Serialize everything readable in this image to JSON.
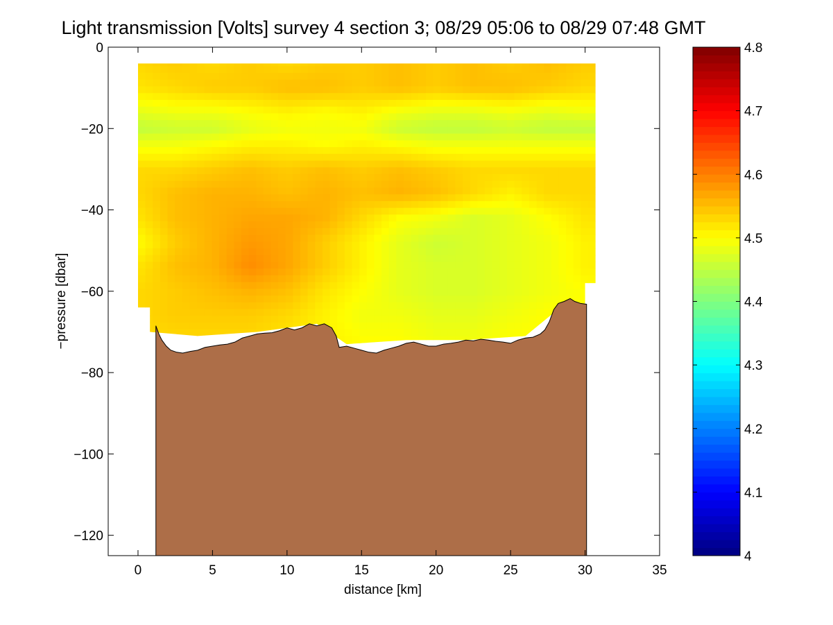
{
  "chart_data": {
    "type": "heatmap",
    "title": "Light transmission [Volts] survey 4 section 3; 08/29 05:06 to 08/29 07:48 GMT",
    "xlabel": "distance [km]",
    "ylabel": "−pressure [dbar]",
    "xlim": [
      -2,
      35
    ],
    "ylim": [
      -125,
      0
    ],
    "xticks": [
      0,
      5,
      10,
      15,
      20,
      25,
      30,
      35
    ],
    "yticks": [
      0,
      -20,
      -40,
      -60,
      -80,
      -100,
      -120
    ],
    "xtick_labels": [
      "0",
      "5",
      "10",
      "15",
      "20",
      "25",
      "30",
      "35"
    ],
    "ytick_labels": [
      "0",
      "−20",
      "−40",
      "−60",
      "−80",
      "−100",
      "−120"
    ],
    "colorbar": {
      "range": [
        4.0,
        4.8
      ],
      "ticks": [
        4.0,
        4.1,
        4.2,
        4.3,
        4.4,
        4.5,
        4.6,
        4.7,
        4.8
      ],
      "tick_labels": [
        "4",
        "4.1",
        "4.2",
        "4.3",
        "4.4",
        "4.5",
        "4.6",
        "4.7",
        "4.8"
      ],
      "colormap": "jet"
    },
    "data_extent": {
      "x_range_km": [
        0,
        30.7
      ],
      "top_pressure_dbar": -4,
      "bottom_edge": [
        [
          0,
          -64
        ],
        [
          0.8,
          -64
        ],
        [
          0.8,
          -70
        ],
        [
          4,
          -71
        ],
        [
          8,
          -70
        ],
        [
          12,
          -68
        ],
        [
          14,
          -73
        ],
        [
          18,
          -72
        ],
        [
          22,
          -72
        ],
        [
          26,
          -71
        ],
        [
          28,
          -65
        ],
        [
          30,
          -63
        ],
        [
          30,
          -58
        ],
        [
          30.7,
          -58
        ]
      ]
    },
    "field_values": {
      "x_km": [
        0,
        2.5,
        5,
        7.5,
        10,
        12.5,
        15,
        17.5,
        20,
        22.5,
        25,
        27.5,
        30
      ],
      "pressure_dbar": [
        -4,
        -10,
        -16,
        -20,
        -24,
        -30,
        -36,
        -42,
        -48,
        -54,
        -60,
        -66,
        -72
      ],
      "z_volts": [
        [
          4.53,
          4.54,
          4.53,
          4.54,
          4.53,
          4.54,
          4.54,
          4.55,
          4.54,
          4.55,
          4.54,
          4.55,
          4.54
        ],
        [
          4.52,
          4.53,
          4.54,
          4.54,
          4.55,
          4.55,
          4.54,
          4.55,
          4.54,
          4.55,
          4.55,
          4.54,
          4.53
        ],
        [
          4.48,
          4.49,
          4.49,
          4.5,
          4.51,
          4.5,
          4.51,
          4.49,
          4.48,
          4.48,
          4.49,
          4.48,
          4.49
        ],
        [
          4.45,
          4.46,
          4.46,
          4.48,
          4.49,
          4.49,
          4.49,
          4.46,
          4.45,
          4.45,
          4.46,
          4.45,
          4.45
        ],
        [
          4.49,
          4.49,
          4.5,
          4.51,
          4.51,
          4.5,
          4.51,
          4.5,
          4.49,
          4.49,
          4.49,
          4.49,
          4.49
        ],
        [
          4.53,
          4.53,
          4.54,
          4.55,
          4.54,
          4.55,
          4.54,
          4.55,
          4.54,
          4.53,
          4.53,
          4.53,
          4.53
        ],
        [
          4.53,
          4.55,
          4.56,
          4.56,
          4.55,
          4.56,
          4.55,
          4.56,
          4.55,
          4.53,
          4.51,
          4.53,
          4.53
        ],
        [
          4.52,
          4.55,
          4.56,
          4.57,
          4.57,
          4.56,
          4.53,
          4.5,
          4.49,
          4.47,
          4.48,
          4.5,
          4.52
        ],
        [
          4.5,
          4.54,
          4.56,
          4.58,
          4.57,
          4.54,
          4.51,
          4.48,
          4.46,
          4.47,
          4.48,
          4.49,
          4.51
        ],
        [
          4.52,
          4.55,
          4.56,
          4.59,
          4.57,
          4.54,
          4.51,
          4.48,
          4.47,
          4.47,
          4.48,
          4.49,
          4.51
        ],
        [
          4.53,
          4.54,
          4.55,
          4.56,
          4.55,
          4.52,
          4.5,
          4.48,
          4.47,
          4.47,
          4.48,
          4.49,
          4.5
        ],
        [
          4.53,
          4.54,
          4.54,
          4.54,
          4.53,
          4.51,
          4.49,
          4.49,
          4.48,
          4.48,
          4.49,
          4.5,
          4.5
        ],
        [
          4.53,
          4.53,
          4.53,
          4.53,
          4.52,
          4.51,
          4.5,
          4.5,
          4.49,
          4.49,
          4.5,
          4.5,
          4.5
        ]
      ]
    },
    "bathymetry": {
      "color": "#ad6e48",
      "x_km": [
        1.2,
        1.4,
        1.6,
        1.9,
        2.2,
        2.6,
        3.0,
        3.5,
        4.0,
        4.5,
        5.0,
        5.5,
        6.0,
        6.5,
        7.0,
        7.5,
        8.0,
        8.5,
        9.0,
        9.5,
        10.0,
        10.5,
        11.0,
        11.5,
        12.0,
        12.5,
        13.0,
        13.3,
        13.5,
        14.0,
        14.5,
        15.0,
        15.5,
        16.0,
        16.5,
        17.0,
        17.5,
        18.0,
        18.5,
        19.0,
        19.5,
        20.0,
        20.5,
        21.0,
        21.5,
        22.0,
        22.5,
        23.0,
        23.5,
        24.0,
        24.5,
        25.0,
        25.5,
        26.0,
        26.5,
        27.0,
        27.3,
        27.6,
        27.9,
        28.2,
        28.6,
        29.0,
        29.3,
        29.7,
        30.1
      ],
      "y_dbar": [
        -68.5,
        -70.5,
        -72.0,
        -73.5,
        -74.5,
        -75.0,
        -75.2,
        -74.8,
        -74.5,
        -73.8,
        -73.5,
        -73.2,
        -73.0,
        -72.5,
        -71.5,
        -71.0,
        -70.5,
        -70.3,
        -70.2,
        -69.7,
        -69.0,
        -69.5,
        -69.0,
        -68.0,
        -68.5,
        -68.0,
        -69.0,
        -71.0,
        -73.8,
        -73.5,
        -74.0,
        -74.5,
        -75.0,
        -75.2,
        -74.5,
        -74.0,
        -73.5,
        -72.8,
        -72.5,
        -73.0,
        -73.5,
        -73.5,
        -73.0,
        -72.8,
        -72.5,
        -72.0,
        -72.2,
        -71.8,
        -72.0,
        -72.3,
        -72.5,
        -72.8,
        -72.0,
        -71.5,
        -71.3,
        -70.5,
        -69.5,
        -67.5,
        -64.5,
        -63.0,
        -62.5,
        -61.8,
        -62.5,
        -63.0,
        -63.2
      ]
    }
  }
}
